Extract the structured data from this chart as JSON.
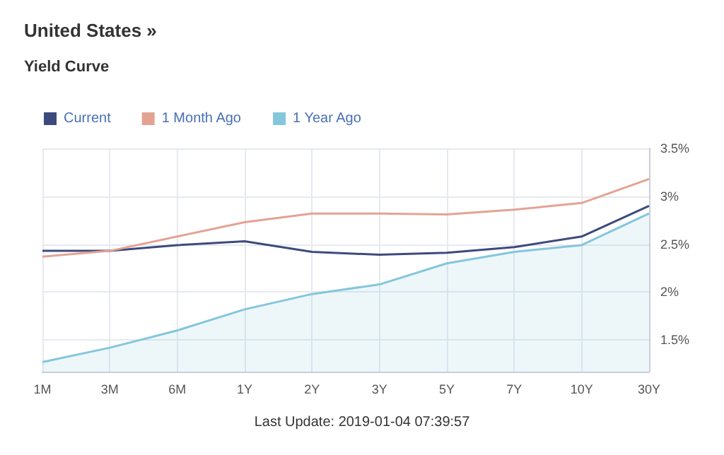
{
  "chart_data": {
    "type": "line",
    "title": "United States »",
    "subtitle": "Yield Curve",
    "annotations": [
      "Last Update: 2019-01-04 07:39:57"
    ],
    "categories": [
      "1M",
      "3M",
      "6M",
      "1Y",
      "2Y",
      "3Y",
      "5Y",
      "7Y",
      "10Y",
      "30Y"
    ],
    "series": [
      {
        "name": "Current",
        "color": "#3d4a7c",
        "values": [
          2.43,
          2.43,
          2.49,
          2.53,
          2.42,
          2.39,
          2.41,
          2.47,
          2.58,
          2.9
        ]
      },
      {
        "name": "1 Month Ago",
        "color": "#e3a393",
        "values": [
          2.37,
          2.43,
          2.58,
          2.73,
          2.82,
          2.82,
          2.81,
          2.86,
          2.93,
          3.18
        ]
      },
      {
        "name": "1 Year Ago",
        "type": "area",
        "color": "#84c6dc",
        "values": [
          1.27,
          1.42,
          1.6,
          1.82,
          1.98,
          2.08,
          2.3,
          2.42,
          2.49,
          2.82
        ]
      }
    ],
    "ylim": [
      1.17,
      3.5
    ],
    "yticks": [
      {
        "value": 1.5,
        "label": "1.5%"
      },
      {
        "value": 2,
        "label": "2%"
      },
      {
        "value": 2.5,
        "label": "2.5%"
      },
      {
        "value": 3,
        "label": "3%"
      },
      {
        "value": 3.5,
        "label": "3.5%"
      }
    ],
    "grid": true,
    "legend": "top left",
    "marker": "none",
    "line_style": "solid"
  }
}
